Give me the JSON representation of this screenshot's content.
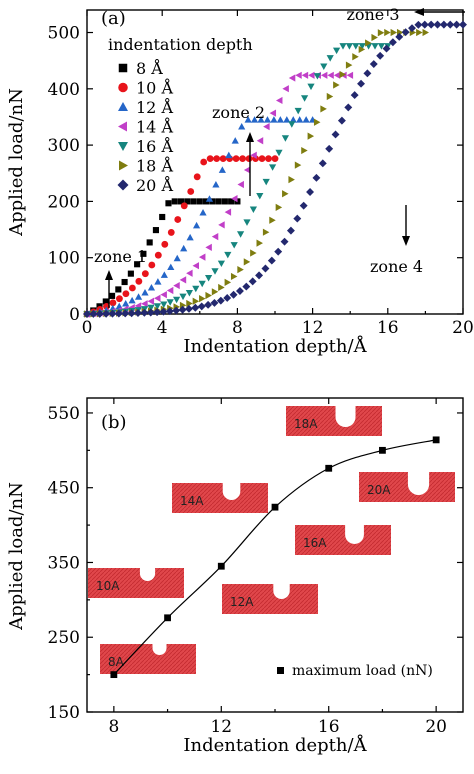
{
  "chart_data": [
    {
      "type": "scatter",
      "panel_label": "(a)",
      "xlabel": "Indentation depth/Å",
      "ylabel": "Applied load/nN",
      "xlim": [
        0,
        20
      ],
      "ylim": [
        0,
        540
      ],
      "xticks": [
        "0",
        "4",
        "8",
        "12",
        "16",
        "20"
      ],
      "yticks": [
        "0",
        "100",
        "200",
        "300",
        "400",
        "500"
      ],
      "legend_title": "indentation depth",
      "legend_position": "top-left",
      "annotations": [
        {
          "text": "zone 1"
        },
        {
          "text": "zone 2"
        },
        {
          "text": "zone 3"
        },
        {
          "text": "zone 4"
        }
      ],
      "series": [
        {
          "name": "8 Å",
          "color": "#000000",
          "marker": "square",
          "max_depth": 8,
          "shift": 4.9
        },
        {
          "name": "10 Å",
          "color": "#e8141b",
          "marker": "circle",
          "max_depth": 10,
          "shift": 6.0
        },
        {
          "name": "12 Å",
          "color": "#2566c8",
          "marker": "triangle-up",
          "max_depth": 12,
          "shift": 7.3
        },
        {
          "name": "14 Å",
          "color": "#c13fc8",
          "marker": "triangle-left",
          "max_depth": 14,
          "shift": 8.7
        },
        {
          "name": "16 Å",
          "color": "#16857e",
          "marker": "triangle-down",
          "max_depth": 16,
          "shift": 10.0
        },
        {
          "name": "18 Å",
          "color": "#7f7d10",
          "marker": "triangle-right",
          "max_depth": 18,
          "shift": 11.3
        },
        {
          "name": "20 Å",
          "color": "#23286e",
          "marker": "diamond",
          "max_depth": 20,
          "shift": 12.6
        }
      ]
    },
    {
      "type": "line",
      "panel_label": "(b)",
      "xlabel": "Indentation depth/Å",
      "ylabel": "Applied load/nN",
      "xlim": [
        7,
        21
      ],
      "ylim": [
        150,
        570
      ],
      "xticks": [
        "8",
        "12",
        "16",
        "20"
      ],
      "yticks": [
        "150",
        "250",
        "350",
        "450",
        "550"
      ],
      "legend_position": "bottom-right",
      "series": [
        {
          "name": "maximum load (nN)",
          "marker": "square",
          "color": "#000000",
          "x": [
            8,
            10,
            12,
            14,
            16,
            18,
            20
          ],
          "y": [
            200,
            276,
            345,
            424,
            476,
            500,
            514
          ]
        }
      ],
      "insets": [
        {
          "label": "8A"
        },
        {
          "label": "10A"
        },
        {
          "label": "12A"
        },
        {
          "label": "14A"
        },
        {
          "label": "16A"
        },
        {
          "label": "18A"
        },
        {
          "label": "20A"
        }
      ]
    }
  ]
}
